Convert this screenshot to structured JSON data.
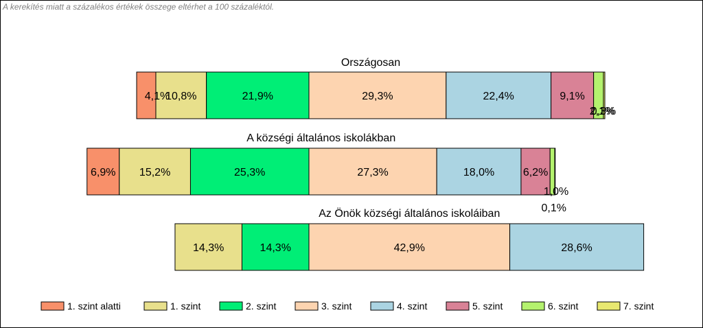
{
  "note": "A kerekítés miatt a  százalékos értékek összege eltérhet a 100 százaléktól.",
  "chart_data": {
    "type": "bar",
    "orientation": "horizontal-stacked-diverging",
    "value_format": "percent-with-decimal-comma",
    "legend_position": "bottom",
    "grid": false,
    "levels": [
      {
        "name": "1. szint alatti",
        "color": "#f8906a"
      },
      {
        "name": "1. szint",
        "color": "#e8e08c"
      },
      {
        "name": "2. szint",
        "color": "#00ee76"
      },
      {
        "name": "3. szint",
        "color": "#fdd4b0"
      },
      {
        "name": "4. szint",
        "color": "#abd4e2"
      },
      {
        "name": "5. szint",
        "color": "#d98296"
      },
      {
        "name": "6. szint",
        "color": "#b4f26e"
      },
      {
        "name": "7. szint",
        "color": "#e8e870"
      }
    ],
    "series": [
      {
        "name": "Országosan",
        "values": [
          4.1,
          10.8,
          21.9,
          29.3,
          22.4,
          9.1,
          2.1,
          0.3
        ]
      },
      {
        "name": "A községi általános iskolákban",
        "values": [
          6.9,
          15.2,
          25.3,
          27.3,
          18.0,
          6.2,
          1.0,
          0.1
        ]
      },
      {
        "name": "Az Önök községi általános iskoláiban",
        "values": [
          0,
          14.3,
          14.3,
          42.9,
          28.6,
          0,
          0,
          0
        ]
      }
    ]
  }
}
